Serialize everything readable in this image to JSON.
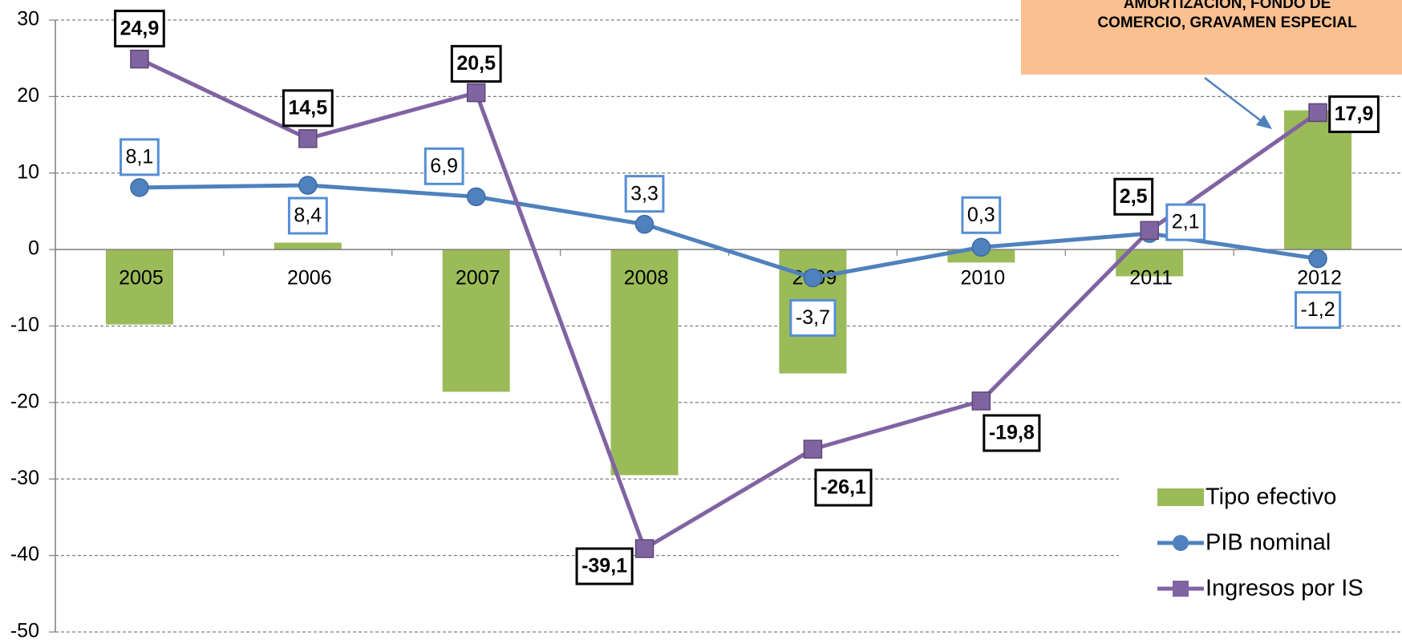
{
  "chart_data": {
    "type": "bar-line",
    "categories": [
      "2005",
      "2006",
      "2007",
      "2008",
      "2009",
      "2010",
      "2011",
      "2012"
    ],
    "series": [
      {
        "name": "Tipo efectivo",
        "type": "bar",
        "color": "#9bbb59",
        "values": [
          -9.8,
          0.9,
          -18.6,
          -29.5,
          -16.2,
          -1.7,
          -3.5,
          18.2
        ]
      },
      {
        "name": "PIB nominal",
        "type": "line",
        "marker": "circle",
        "color": "#4f81bd",
        "values": [
          8.1,
          8.4,
          6.9,
          3.3,
          -3.7,
          0.3,
          2.1,
          -1.2
        ],
        "value_labels": [
          "8,1",
          "8,4",
          "6,9",
          "3,3",
          "-3,7",
          "0,3",
          "2,1",
          "-1,2"
        ]
      },
      {
        "name": "Ingresos por IS",
        "type": "line",
        "marker": "square",
        "color": "#8064a2",
        "values": [
          24.9,
          14.5,
          20.5,
          -39.1,
          -26.1,
          -19.8,
          2.5,
          17.9
        ],
        "value_labels": [
          "24,9",
          "14,5",
          "20,5",
          "-39,1",
          "-26,1",
          "-19,8",
          "2,5",
          "17,9"
        ]
      }
    ],
    "ylim": [
      -50,
      30
    ],
    "yticks": [
      -50,
      -40,
      -30,
      -20,
      -10,
      0,
      10,
      20,
      30
    ],
    "grid": true,
    "legend": "lower right",
    "annotation": [
      "AMORTIZACIÓN, FONDO DE",
      "COMERCIO, GRAVAMEN ESPECIAL"
    ]
  }
}
